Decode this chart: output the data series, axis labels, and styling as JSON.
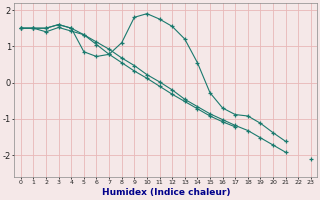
{
  "xlabel": "Humidex (Indice chaleur)",
  "bg_color": "#f5e8e8",
  "line_color": "#1a7a6e",
  "grid_color": "#e8b8b8",
  "ylim": [
    -2.6,
    2.2
  ],
  "xlim": [
    -0.5,
    23.5
  ],
  "yticks": [
    -2,
    -1,
    0,
    1,
    2
  ],
  "x": [
    0,
    1,
    2,
    3,
    4,
    5,
    6,
    7,
    8,
    9,
    10,
    11,
    12,
    13,
    14,
    15,
    16,
    17,
    18,
    19,
    20,
    21,
    22,
    23
  ],
  "line1_y": [
    1.5,
    1.5,
    1.5,
    1.6,
    1.5,
    0.85,
    0.72,
    0.78,
    1.1,
    1.8,
    1.9,
    1.75,
    1.55,
    1.2,
    0.55,
    -0.28,
    -0.7,
    -0.88,
    -0.92,
    -1.12,
    -1.38,
    -1.62,
    null,
    null
  ],
  "line2_y": [
    1.5,
    1.5,
    1.4,
    1.52,
    1.42,
    1.32,
    1.05,
    0.78,
    0.55,
    0.32,
    0.12,
    -0.1,
    -0.32,
    -0.52,
    -0.72,
    -0.92,
    -1.08,
    -1.22,
    null,
    null,
    null,
    null,
    null,
    null
  ],
  "line3_y": [
    1.5,
    1.5,
    1.5,
    1.6,
    1.5,
    1.32,
    1.12,
    0.92,
    0.68,
    0.47,
    0.22,
    0.02,
    -0.2,
    -0.46,
    -0.66,
    -0.86,
    -1.02,
    -1.18,
    -1.32,
    -1.52,
    -1.72,
    -1.92,
    null,
    -2.1
  ]
}
